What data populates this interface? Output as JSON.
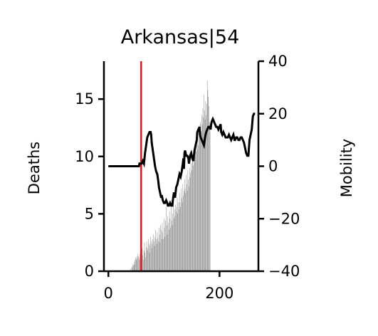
{
  "chart_data": {
    "type": "bar+line",
    "title": "Arkansas|54",
    "x": {
      "label": "",
      "range": [
        -8,
        270
      ],
      "ticks": [
        0,
        200
      ]
    },
    "y_left": {
      "label": "Deaths",
      "range": [
        0,
        18.3
      ],
      "ticks": [
        0,
        5,
        10,
        15
      ]
    },
    "y_right": {
      "label": "Mobility",
      "range": [
        -40,
        40
      ],
      "ticks": [
        -40,
        -20,
        0,
        20,
        40
      ],
      "tick_labels": [
        "−40",
        "−20",
        "0",
        "20",
        "40"
      ]
    },
    "marker_line": {
      "x": 59,
      "color": "#e8141c"
    },
    "bar_color": "#808080",
    "line_color": "#000000",
    "series": [
      {
        "name": "",
        "kind": "bar",
        "axis": "left",
        "x_start": 40,
        "values": [
          0.2,
          0,
          0.4,
          0.3,
          0.6,
          0.5,
          0.8,
          0.6,
          1.0,
          1.2,
          1.0,
          1.3,
          1.1,
          1.5,
          1.3,
          1.2,
          1.0,
          1.5,
          1.8,
          1.6,
          1.2,
          2.0,
          1.4,
          1.0,
          1.8,
          2.5,
          1.6,
          1.2,
          2.1,
          2.6,
          1.8,
          2.0,
          2.8,
          2.4,
          1.6,
          2.2,
          3.0,
          2.6,
          2.0,
          2.4,
          2.8,
          3.2,
          2.6,
          2.2,
          3.0,
          3.6,
          2.8,
          2.4,
          3.4,
          2.9,
          2.6,
          3.8,
          3.2,
          2.5,
          4.0,
          3.6,
          2.8,
          4.2,
          3.4,
          2.8,
          4.6,
          3.8,
          3.0,
          4.4,
          5.6,
          4.0,
          3.2,
          4.8,
          4.2,
          3.6,
          5.2,
          4.6,
          3.8,
          5.8,
          4.4,
          4.0,
          5.0,
          6.2,
          4.6,
          5.4,
          4.8,
          5.8,
          5.2,
          5.6,
          6.4,
          5.0,
          6.0,
          5.4,
          6.8,
          6.0,
          5.6,
          7.2,
          6.4,
          6.0,
          7.6,
          6.6,
          7.0,
          8.0,
          7.2,
          6.8,
          8.4,
          7.6,
          7.0,
          8.8,
          8.0,
          7.4,
          9.0,
          8.2,
          8.6,
          9.4,
          8.8,
          9.6,
          10.2,
          9.2,
          9.8,
          10.6,
          10.0,
          11.0,
          10.4,
          11.2,
          10.6,
          11.8,
          11.0,
          12.4,
          11.6,
          12.8,
          13.0,
          12.2,
          13.6,
          12.8,
          14.2,
          13.4,
          15.4,
          14.0,
          13.2,
          14.8,
          13.6,
          14.6,
          16.6,
          15.8,
          15.2,
          14.4,
          13.0,
          12.2
        ]
      },
      {
        "name": "",
        "kind": "line",
        "axis": "right",
        "points": [
          [
            0,
            0
          ],
          [
            10,
            0
          ],
          [
            20,
            0
          ],
          [
            30,
            0
          ],
          [
            40,
            0
          ],
          [
            50,
            0
          ],
          [
            55,
            0
          ],
          [
            56,
            1
          ],
          [
            60,
            1
          ],
          [
            62,
            2
          ],
          [
            64,
            1
          ],
          [
            65,
            3
          ],
          [
            66,
            5
          ],
          [
            68,
            8
          ],
          [
            70,
            11
          ],
          [
            72,
            12
          ],
          [
            74,
            13
          ],
          [
            76,
            13
          ],
          [
            77,
            12
          ],
          [
            78,
            9
          ],
          [
            80,
            6
          ],
          [
            82,
            3
          ],
          [
            84,
            0
          ],
          [
            86,
            -2
          ],
          [
            88,
            -3
          ],
          [
            90,
            -6
          ],
          [
            91,
            -8
          ],
          [
            93,
            -10
          ],
          [
            95,
            -12
          ],
          [
            96,
            -11
          ],
          [
            98,
            -13
          ],
          [
            100,
            -14
          ],
          [
            102,
            -14
          ],
          [
            104,
            -13
          ],
          [
            106,
            -14
          ],
          [
            107,
            -15
          ],
          [
            109,
            -15
          ],
          [
            111,
            -14
          ],
          [
            113,
            -15
          ],
          [
            115,
            -15
          ],
          [
            116,
            -13
          ],
          [
            118,
            -10
          ],
          [
            120,
            -12
          ],
          [
            122,
            -8
          ],
          [
            124,
            -7
          ],
          [
            126,
            -5
          ],
          [
            128,
            -3
          ],
          [
            130,
            -4
          ],
          [
            132,
            -2
          ],
          [
            134,
            1
          ],
          [
            135,
            3
          ],
          [
            136,
            -1
          ],
          [
            137,
            5
          ],
          [
            138,
            6
          ],
          [
            140,
            4
          ],
          [
            142,
            4
          ],
          [
            144,
            3
          ],
          [
            145,
            1
          ],
          [
            147,
            4
          ],
          [
            149,
            5
          ],
          [
            151,
            3
          ],
          [
            153,
            2
          ],
          [
            155,
            6
          ],
          [
            157,
            8
          ],
          [
            159,
            10
          ],
          [
            160,
            13
          ],
          [
            162,
            14
          ],
          [
            164,
            15
          ],
          [
            165,
            12
          ],
          [
            166,
            11
          ],
          [
            168,
            10
          ],
          [
            170,
            9
          ],
          [
            172,
            8
          ],
          [
            174,
            11
          ],
          [
            176,
            13
          ],
          [
            178,
            14
          ],
          [
            180,
            15
          ],
          [
            182,
            15
          ],
          [
            184,
            14
          ],
          [
            185,
            16
          ],
          [
            186,
            17
          ],
          [
            188,
            18
          ],
          [
            190,
            17
          ],
          [
            192,
            16
          ],
          [
            194,
            15
          ],
          [
            196,
            15
          ],
          [
            198,
            14
          ],
          [
            200,
            15
          ],
          [
            202,
            16
          ],
          [
            203,
            13
          ],
          [
            205,
            12
          ],
          [
            207,
            13
          ],
          [
            209,
            12
          ],
          [
            211,
            11
          ],
          [
            213,
            11
          ],
          [
            215,
            11
          ],
          [
            217,
            12
          ],
          [
            219,
            11
          ],
          [
            221,
            10
          ],
          [
            223,
            11
          ],
          [
            225,
            12
          ],
          [
            227,
            10
          ],
          [
            228,
            10
          ],
          [
            230,
            11
          ],
          [
            232,
            11
          ],
          [
            234,
            10
          ],
          [
            236,
            10
          ],
          [
            238,
            11
          ],
          [
            240,
            11
          ],
          [
            242,
            10
          ],
          [
            244,
            9
          ],
          [
            246,
            7
          ],
          [
            248,
            5
          ],
          [
            250,
            4
          ],
          [
            252,
            4
          ],
          [
            253,
            7
          ],
          [
            254,
            10
          ],
          [
            256,
            12
          ],
          [
            258,
            14
          ],
          [
            260,
            19
          ],
          [
            262,
            20
          ],
          [
            264,
            20
          ]
        ]
      }
    ],
    "grid": false,
    "legend": "none"
  }
}
